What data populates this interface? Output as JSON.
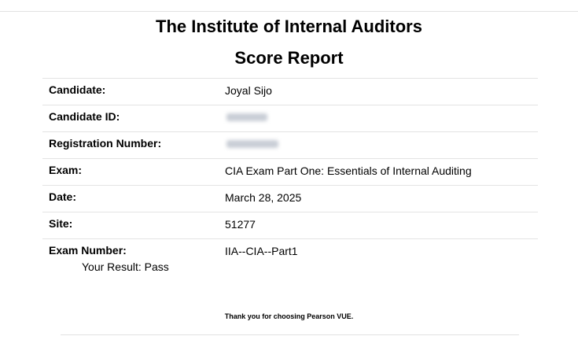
{
  "header": {
    "organization": "The Institute of Internal Auditors",
    "title": "Score Report"
  },
  "rows": [
    {
      "label": "Candidate:",
      "value": "Joyal Sijo"
    },
    {
      "label": "Candidate ID:"
    },
    {
      "label": "Registration Number:"
    },
    {
      "label": "Exam:",
      "value": "CIA Exam Part One: Essentials of Internal Auditing"
    },
    {
      "label": "Date:",
      "value": "March 28, 2025"
    },
    {
      "label": "Site:",
      "value": "51277"
    },
    {
      "label": "Exam Number:",
      "value": "IIA--CIA--Part1"
    }
  ],
  "result": "Your Result: Pass",
  "footer": {
    "thanks": "Thank you for choosing Pearson VUE."
  }
}
